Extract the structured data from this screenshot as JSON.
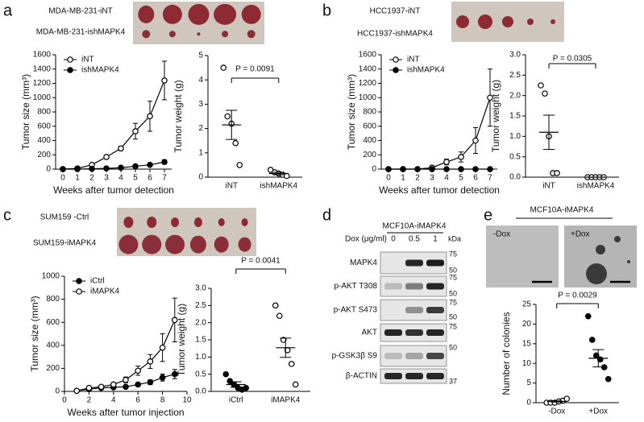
{
  "panel_labels": [
    "a",
    "b",
    "c",
    "d",
    "e"
  ],
  "tumor_images": [
    {
      "top": "MDA-MB-231-iNT",
      "bottom": "MDA-MB-231-ishMAPK4"
    },
    {
      "top": "HCC1937-iNT",
      "bottom": "HCC1937-ishMAPK4"
    },
    {
      "top": "SUM159 -Ctrl",
      "bottom": "SUM159-iMAPK4"
    }
  ],
  "blot": {
    "title": "MCF10A-iMAPK4",
    "dose_label": "Dox  (μg/ml)",
    "doses": [
      "0",
      "0.5",
      "1"
    ],
    "unit": "kDa",
    "rows": [
      "MAPK4",
      "p-AKT T308",
      "p-AKT S473",
      "AKT",
      "p-GSK3β S9",
      "β-ACTIN"
    ],
    "markers": [
      75,
      50,
      75,
      50,
      75,
      50,
      75,
      50,
      37
    ]
  },
  "colony_images": {
    "title": "MCF10A-iMAPK4",
    "left": "-Dox",
    "right": "+Dox"
  },
  "chart_data": [
    {
      "type": "line",
      "x": [
        0,
        1,
        2,
        3,
        4,
        5,
        6,
        7
      ],
      "xlim": [
        -0.5,
        7.5
      ],
      "xticks": [
        0,
        1,
        2,
        3,
        4,
        5,
        6,
        7
      ],
      "ylim": [
        0,
        1600
      ],
      "yticks": [
        0,
        200,
        400,
        600,
        800,
        1000,
        1200,
        1400,
        1600
      ],
      "xlabel": "Weeks after tumor detection",
      "ylabel": "Tumor size (mm³)",
      "legend": "upper left",
      "series": [
        {
          "name": "iNT",
          "color": "#000000",
          "marker": "open",
          "values": [
            0,
            10,
            60,
            170,
            290,
            530,
            740,
            1240
          ],
          "errors": [
            0,
            5,
            10,
            15,
            30,
            110,
            210,
            270
          ]
        },
        {
          "name": "ishMAPK4",
          "color": "#000000",
          "marker": "filled",
          "values": [
            0,
            0,
            5,
            10,
            20,
            40,
            60,
            100
          ],
          "errors": [
            0,
            0,
            5,
            5,
            10,
            15,
            20,
            30
          ]
        }
      ]
    },
    {
      "type": "dot",
      "ylim": [
        0,
        5
      ],
      "yticks": [
        0,
        1,
        2,
        3,
        4,
        5
      ],
      "ylabel": "Tumor weight (g)",
      "annotation": "P = 0.0091",
      "groups": [
        {
          "name": "iNT",
          "marker": "open",
          "points": [
            4.5,
            2.5,
            2.2,
            1.4,
            0.5
          ],
          "mean": 2.15,
          "sem": 0.6
        },
        {
          "name": "ishMAPK4",
          "marker": "open",
          "points": [
            0.3,
            0.2,
            0.15,
            0.1,
            0.05
          ],
          "mean": 0.15,
          "sem": 0.05
        }
      ]
    },
    {
      "type": "line",
      "x": [
        0,
        1,
        2,
        3,
        4,
        5,
        6,
        7
      ],
      "xlim": [
        -0.5,
        7.5
      ],
      "xticks": [
        0,
        1,
        2,
        3,
        4,
        5,
        6,
        7
      ],
      "ylim": [
        0,
        1600
      ],
      "yticks": [
        0,
        200,
        400,
        600,
        800,
        1000,
        1200,
        1400,
        1600
      ],
      "xlabel": "Weeks after tumor detection",
      "ylabel": "Tumor size (mm³)",
      "legend": "upper left",
      "series": [
        {
          "name": "iNT",
          "color": "#000000",
          "marker": "open",
          "values": [
            0,
            0,
            0,
            20,
            100,
            170,
            400,
            1000
          ],
          "errors": [
            0,
            0,
            0,
            15,
            40,
            70,
            180,
            400
          ]
        },
        {
          "name": "ishMAPK4",
          "color": "#000000",
          "marker": "filled",
          "values": [
            0,
            0,
            0,
            0,
            0,
            0,
            0,
            0
          ],
          "errors": [
            0,
            0,
            0,
            0,
            0,
            0,
            0,
            0
          ]
        }
      ]
    },
    {
      "type": "dot",
      "ylim": [
        0,
        3
      ],
      "yticks": [
        {
          "value": 0,
          "label": "0.0"
        },
        0.5,
        {
          "value": 1,
          "label": "1.0"
        },
        1.5,
        {
          "value": 2,
          "label": "2.0"
        },
        2.5,
        {
          "value": 3,
          "label": "3.0"
        }
      ],
      "ylabel": "Tumor weight (g)",
      "annotation": "P = 0.0305",
      "groups": [
        {
          "name": "iNT",
          "marker": "open",
          "points": [
            2.25,
            2.05,
            1.0,
            0.1,
            0.1
          ],
          "mean": 1.1,
          "sem": 0.42
        },
        {
          "name": "ishMAPK4",
          "marker": "open",
          "points": [
            0,
            0,
            0,
            0,
            0
          ],
          "mean": 0,
          "sem": 0
        }
      ]
    },
    {
      "type": "line",
      "x": [
        1,
        2,
        3,
        4,
        5,
        6,
        7,
        8,
        9
      ],
      "xlim": [
        0,
        10
      ],
      "xticks": [
        0,
        2,
        4,
        6,
        8,
        10
      ],
      "ylim": [
        0,
        1000
      ],
      "yticks": [
        0,
        200,
        400,
        600,
        800,
        1000
      ],
      "xlabel": "Weeks after tumor injection",
      "ylabel": "Tumor size (mm³)",
      "legend": "upper left",
      "series": [
        {
          "name": "iCtrl",
          "color": "#000000",
          "marker": "filled",
          "values": [
            5,
            20,
            30,
            35,
            40,
            60,
            80,
            120,
            150
          ],
          "errors": [
            2,
            5,
            8,
            8,
            10,
            15,
            20,
            30,
            40
          ]
        },
        {
          "name": "iMAPK4",
          "color": "#000000",
          "marker": "open",
          "values": [
            5,
            30,
            40,
            60,
            100,
            180,
            260,
            380,
            620
          ],
          "errors": [
            3,
            8,
            10,
            15,
            25,
            40,
            60,
            120,
            190
          ]
        }
      ]
    },
    {
      "type": "dot",
      "ylim": [
        0,
        3
      ],
      "yticks": [
        {
          "value": 0,
          "label": "0.0"
        },
        0.5,
        {
          "value": 1,
          "label": "1.0"
        },
        1.5,
        {
          "value": 2,
          "label": "2.0"
        },
        2.5,
        {
          "value": 3,
          "label": "3.0"
        }
      ],
      "ylabel": "Tumor weight (g)",
      "annotation": "P = 0.0041",
      "groups": [
        {
          "name": "iCtrl",
          "marker": "filled",
          "points": [
            0.5,
            0.3,
            0.2,
            0.1,
            0.05,
            0.1
          ],
          "mean": 0.2,
          "sem": 0.08
        },
        {
          "name": "iMAPK4",
          "marker": "open",
          "points": [
            2.5,
            2.2,
            1.5,
            1.2,
            0.8,
            0.2
          ],
          "mean": 1.27,
          "sem": 0.28
        }
      ]
    },
    {
      "type": "dot",
      "ylim": [
        0,
        25
      ],
      "yticks": [
        0,
        5,
        10,
        15,
        20,
        25
      ],
      "ylabel": "Number of colonies",
      "annotation": "P = 0.0029",
      "groups": [
        {
          "name": "-Dox",
          "marker": "open",
          "points": [
            0,
            0,
            0,
            0.3,
            0.5,
            1
          ],
          "mean": 0.3,
          "sem": 0.15
        },
        {
          "name": "+Dox",
          "marker": "filled",
          "points": [
            22,
            16,
            12,
            11,
            9,
            6
          ],
          "mean": 11.3,
          "sem": 2.2
        }
      ]
    }
  ]
}
